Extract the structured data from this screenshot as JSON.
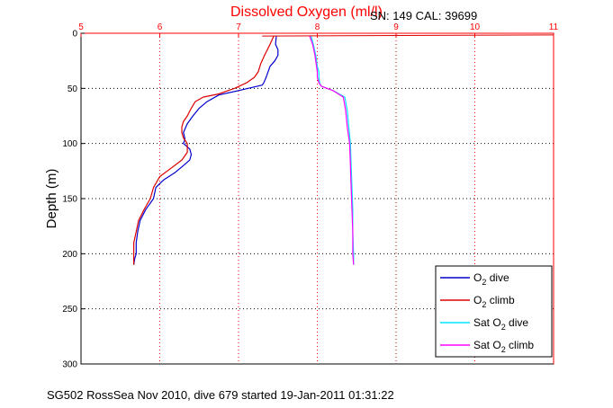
{
  "chart_data": {
    "type": "line",
    "title": "Dissolved Oxygen (ml/l)",
    "subtitle": "SN: 149  CAL: 39699",
    "ylabel": "Depth (m)",
    "footer": "SG502 RossSea Nov 2010, dive 679 started 19-Jan-2011 01:31:22",
    "xlim": [
      5,
      11
    ],
    "ylim": [
      0,
      300
    ],
    "y_reversed": true,
    "x_axis_position": "top",
    "xticks": [
      "5",
      "6",
      "7",
      "8",
      "9",
      "10",
      "11"
    ],
    "yticks": [
      "0",
      "50",
      "100",
      "150",
      "200",
      "250",
      "300"
    ],
    "grid": true,
    "legend_position": "bottom-right",
    "series": [
      {
        "name": "O2 dive",
        "color": "#0000cc",
        "x": [
          7.48,
          7.47,
          7.5,
          7.5,
          7.46,
          7.4,
          7.35,
          7.32,
          7.3,
          7.0,
          6.75,
          6.6,
          6.5,
          6.42,
          6.35,
          6.3,
          6.32,
          6.3,
          6.38,
          6.4,
          6.38,
          6.3,
          6.2,
          6.05,
          5.95,
          5.92,
          5.82,
          5.75,
          5.72,
          5.7,
          5.7,
          5.68,
          5.67
        ],
        "y": [
          2,
          10,
          15,
          20,
          25,
          30,
          40,
          45,
          47,
          52,
          56,
          62,
          68,
          75,
          82,
          90,
          96,
          100,
          105,
          110,
          115,
          120,
          126,
          133,
          140,
          150,
          160,
          170,
          180,
          190,
          200,
          205,
          210
        ]
      },
      {
        "name": "O2 climb",
        "color": "#dd0000",
        "x": [
          7.45,
          7.4,
          7.33,
          7.28,
          7.25,
          7.2,
          7.1,
          6.95,
          6.75,
          6.55,
          6.45,
          6.4,
          6.35,
          6.3,
          6.28,
          6.28,
          6.3,
          6.35,
          6.35,
          6.28,
          6.15,
          6.0,
          5.92,
          5.88,
          5.8,
          5.73,
          5.7,
          5.67,
          5.67,
          5.67
        ],
        "y": [
          2,
          10,
          20,
          28,
          35,
          40,
          45,
          50,
          55,
          58,
          62,
          68,
          75,
          80,
          85,
          90,
          95,
          100,
          108,
          115,
          122,
          130,
          140,
          150,
          160,
          170,
          180,
          190,
          200,
          210
        ]
      },
      {
        "name": "Sat O2 dive",
        "color": "#00e5ff",
        "x": [
          7.92,
          7.95,
          7.98,
          8.0,
          8.02,
          8.02,
          8.03,
          8.05,
          8.2,
          8.35,
          8.38,
          8.4,
          8.42,
          8.43,
          8.44,
          8.45,
          8.45,
          8.46,
          8.46
        ],
        "y": [
          2,
          10,
          20,
          30,
          35,
          40,
          45,
          48,
          52,
          58,
          70,
          85,
          100,
          120,
          140,
          160,
          180,
          200,
          210
        ]
      },
      {
        "name": "Sat O2 climb",
        "color": "#ff00ff",
        "x": [
          7.9,
          7.94,
          7.97,
          7.99,
          8.0,
          8.0,
          8.02,
          8.05,
          8.2,
          8.33,
          8.36,
          8.38,
          8.41,
          8.42,
          8.43,
          8.44,
          8.45,
          8.45,
          8.46
        ],
        "y": [
          2,
          10,
          20,
          30,
          35,
          40,
          45,
          48,
          52,
          58,
          70,
          85,
          100,
          120,
          140,
          160,
          180,
          200,
          210
        ]
      }
    ]
  },
  "legend": {
    "items": [
      {
        "prefix": "O",
        "sub": "2",
        "suffix": " dive",
        "color": "#0000cc"
      },
      {
        "prefix": "O",
        "sub": "2",
        "suffix": " climb",
        "color": "#dd0000"
      },
      {
        "prefix": "Sat O",
        "sub": "2",
        "suffix": " dive",
        "color": "#00e5ff"
      },
      {
        "prefix": "Sat O",
        "sub": "2",
        "suffix": " climb",
        "color": "#ff00ff"
      }
    ]
  }
}
